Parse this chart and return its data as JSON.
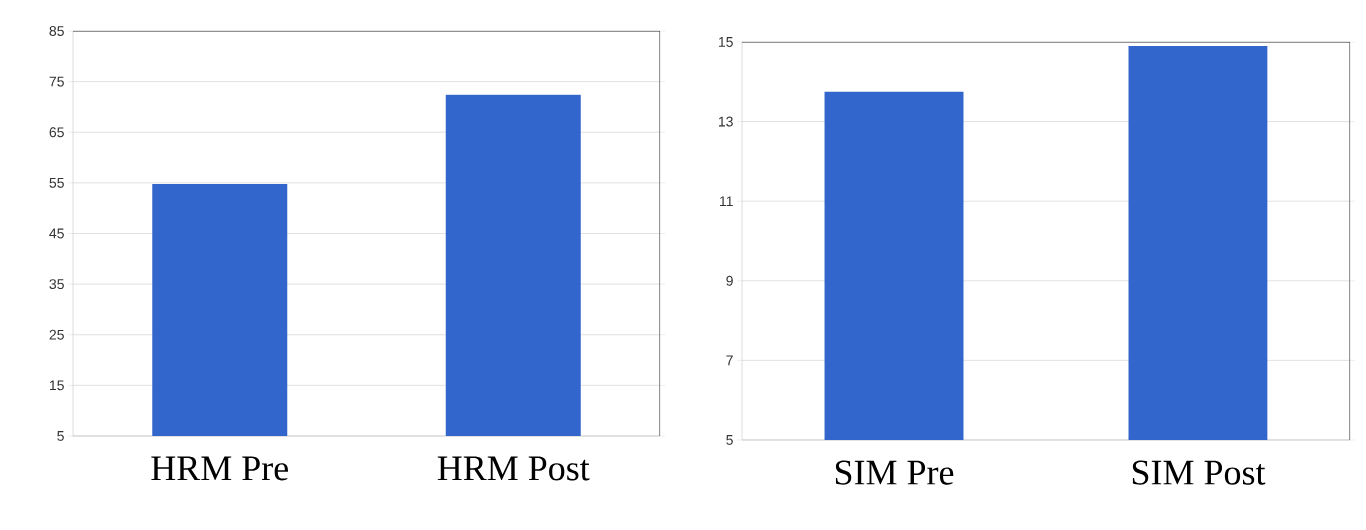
{
  "chart_data": [
    {
      "type": "bar",
      "categories": [
        "HRM Pre",
        "HRM Post"
      ],
      "values": [
        54.8,
        72.4
      ],
      "color": "#3366cc",
      "ylim": [
        5,
        85
      ],
      "yticks": [
        5,
        15,
        25,
        35,
        45,
        55,
        65,
        75,
        85
      ],
      "grid": "y"
    },
    {
      "type": "bar",
      "categories": [
        "SIM Pre",
        "SIM Post"
      ],
      "values": [
        13.75,
        14.9
      ],
      "color": "#3366cc",
      "ylim": [
        5,
        15
      ],
      "yticks": [
        5,
        7,
        9,
        11,
        13,
        15
      ],
      "grid": "y"
    }
  ]
}
